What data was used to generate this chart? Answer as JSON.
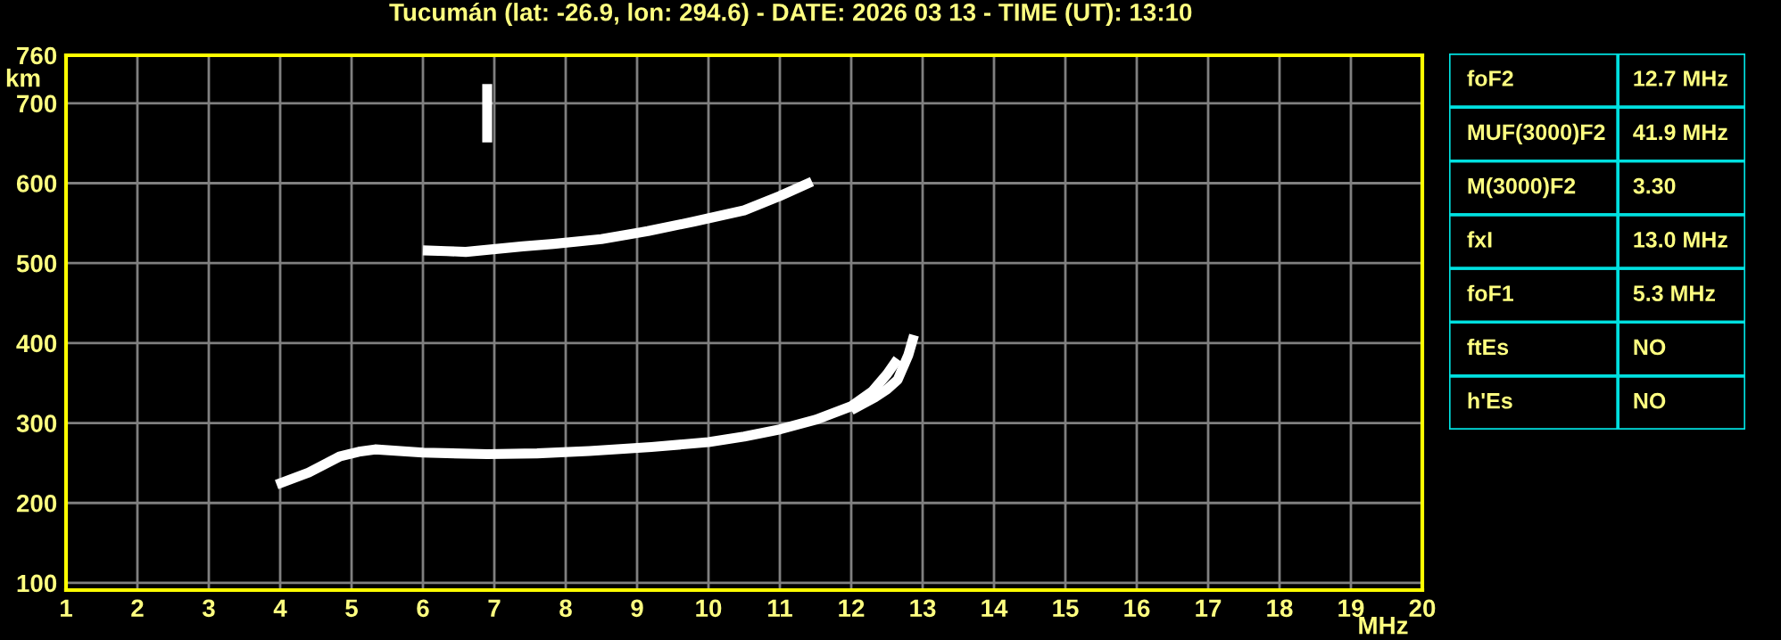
{
  "chart_data": [
    {
      "type": "line",
      "title": "Tucumán (lat: -26.9, lon: 294.6) - DATE: 2026 03 13 - TIME (UT): 13:10",
      "xlabel": "MHz",
      "ylabel": "km",
      "xlim": [
        1,
        20
      ],
      "ylim": [
        91,
        760
      ],
      "xticks": [
        1,
        2,
        3,
        4,
        5,
        6,
        7,
        8,
        9,
        10,
        11,
        12,
        13,
        14,
        15,
        16,
        17,
        18,
        19,
        20
      ],
      "yticks": [
        100,
        200,
        300,
        400,
        500,
        600,
        700,
        760
      ],
      "grid": true,
      "marker": "none",
      "line_style": "solid",
      "series": [
        {
          "color": "#ffffff",
          "x": [
            3.95,
            4.4,
            4.83,
            5.1,
            5.33,
            6.0,
            6.9,
            7.6,
            8.33,
            9.2,
            10.0,
            10.5,
            11.0,
            11.5,
            12.0,
            12.3,
            12.5,
            12.65
          ],
          "values": [
            223,
            238,
            258,
            264,
            267,
            263,
            261,
            262,
            265,
            270,
            276,
            283,
            292,
            304,
            321,
            340,
            361,
            380
          ]
        },
        {
          "color": "#ffffff",
          "x": [
            12.0,
            12.33,
            12.5,
            12.65,
            12.8,
            12.88
          ],
          "values": [
            316,
            332,
            342,
            354,
            385,
            410
          ]
        },
        {
          "color": "#ffffff",
          "x": [
            6.0,
            6.33,
            6.6,
            7.4,
            7.83,
            8.5,
            9.15,
            9.8,
            10.5,
            11.0,
            11.45
          ],
          "values": [
            516,
            515,
            514,
            521,
            524,
            530,
            540,
            552,
            566,
            584,
            602
          ]
        },
        {
          "color": "#ffffff",
          "x": [
            6.9,
            6.9
          ],
          "values": [
            651,
            724
          ]
        }
      ]
    },
    {
      "type": "other",
      "annotations": [
        "foF2",
        "12.7 MHz",
        "MUF(3000)F2",
        "41.9 MHz",
        "M(3000)F2",
        "3.30",
        "fxI",
        "13.0 MHz",
        "foF1",
        "5.3 MHz",
        "ftEs",
        "NO",
        "h'Es",
        "NO"
      ]
    }
  ]
}
